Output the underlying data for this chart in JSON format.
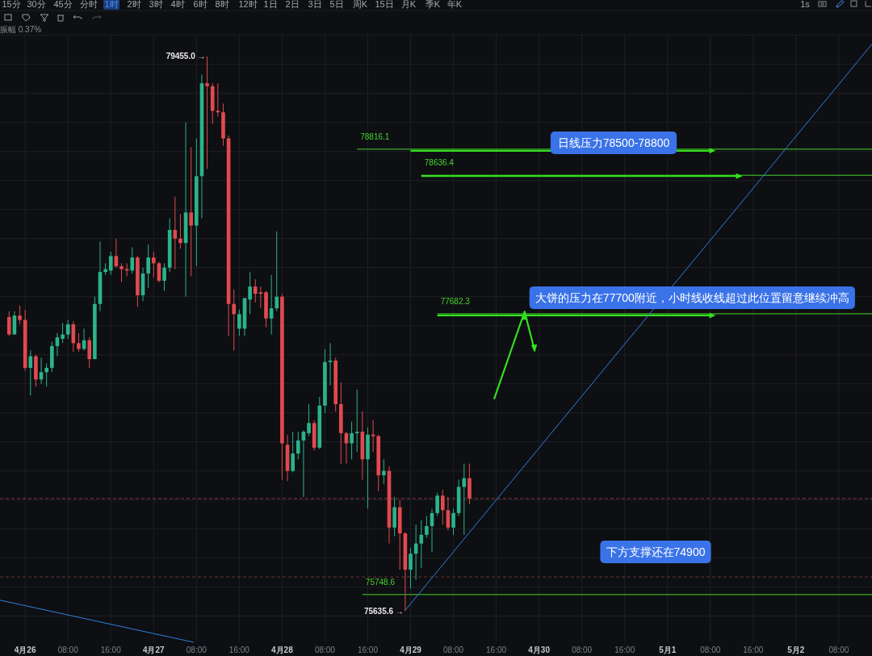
{
  "chart_data": {
    "type": "candlestick",
    "subtitle": "振幅 0.37%",
    "x": [
      "--04-25T21:00",
      "--04-25T22:00",
      "--04-25T23:00",
      "--04-26T00:00",
      "--04-26T01:00",
      "--04-26T02:00",
      "--04-26T03:00",
      "--04-26T04:00",
      "--04-26T05:00",
      "--04-26T06:00",
      "--04-26T07:00",
      "--04-26T08:00",
      "--04-26T09:00",
      "--04-26T10:00",
      "--04-26T11:00",
      "--04-26T12:00",
      "--04-26T13:00",
      "--04-26T14:00",
      "--04-26T15:00",
      "--04-26T16:00",
      "--04-26T17:00",
      "--04-26T18:00",
      "--04-26T19:00",
      "--04-26T20:00",
      "--04-26T21:00",
      "--04-26T22:00",
      "--04-26T23:00",
      "--04-27T00:00",
      "--04-27T01:00",
      "--04-27T02:00",
      "--04-27T03:00",
      "--04-27T04:00",
      "--04-27T05:00",
      "--04-27T06:00",
      "--04-27T07:00",
      "--04-27T08:00",
      "--04-27T09:00",
      "--04-27T10:00",
      "--04-27T11:00",
      "--04-27T12:00",
      "--04-27T13:00",
      "--04-27T14:00",
      "--04-27T15:00",
      "--04-27T16:00",
      "--04-27T17:00",
      "--04-27T18:00",
      "--04-27T19:00",
      "--04-27T20:00",
      "--04-27T21:00",
      "--04-27T22:00",
      "--04-27T23:00",
      "--04-28T00:00",
      "--04-28T01:00",
      "--04-28T02:00",
      "--04-28T03:00",
      "--04-28T04:00",
      "--04-28T05:00",
      "--04-28T06:00",
      "--04-28T07:00",
      "--04-28T08:00",
      "--04-28T09:00",
      "--04-28T10:00",
      "--04-28T11:00",
      "--04-28T12:00",
      "--04-28T13:00",
      "--04-28T14:00",
      "--04-28T15:00",
      "--04-28T16:00",
      "--04-28T17:00",
      "--04-28T18:00",
      "--04-28T19:00",
      "--04-28T20:00",
      "--04-28T21:00",
      "--04-28T22:00",
      "--04-28T23:00",
      "--04-29T00:00",
      "--04-29T01:00",
      "--04-29T02:00",
      "--04-29T03:00",
      "--04-29T04:00",
      "--04-29T05:00",
      "--04-29T06:00",
      "--04-29T07:00",
      "--04-29T08:00",
      "--04-29T09:00",
      "--04-29T10:00",
      "--04-29T11:00"
    ],
    "ohlc": [
      [
        77660,
        77700,
        77530,
        77540
      ],
      [
        77540,
        77700,
        77540,
        77670
      ],
      [
        77670,
        77740,
        77610,
        77640
      ],
      [
        77640,
        77710,
        77290,
        77310
      ],
      [
        77310,
        77430,
        77120,
        77390
      ],
      [
        77390,
        77400,
        77180,
        77230
      ],
      [
        77230,
        77380,
        77200,
        77280
      ],
      [
        77280,
        77340,
        77180,
        77310
      ],
      [
        77310,
        77490,
        77280,
        77460
      ],
      [
        77460,
        77550,
        77390,
        77520
      ],
      [
        77510,
        77620,
        77480,
        77540
      ],
      [
        77540,
        77640,
        77510,
        77610
      ],
      [
        77610,
        77630,
        77420,
        77480
      ],
      [
        77480,
        77550,
        77420,
        77440
      ],
      [
        77440,
        77580,
        77430,
        77500
      ],
      [
        77500,
        77520,
        77310,
        77370
      ],
      [
        77370,
        77800,
        77370,
        77750
      ],
      [
        77750,
        78180,
        77700,
        77970
      ],
      [
        77970,
        78030,
        77950,
        77990
      ],
      [
        77980,
        78110,
        77950,
        78080
      ],
      [
        78080,
        78200,
        78000,
        78010
      ],
      [
        78010,
        78030,
        77900,
        77990
      ],
      [
        77990,
        78030,
        77940,
        77980
      ],
      [
        77980,
        78140,
        77960,
        78070
      ],
      [
        78070,
        78080,
        77730,
        77810
      ],
      [
        77810,
        78000,
        77770,
        77960
      ],
      [
        77960,
        78160,
        77860,
        78070
      ],
      [
        78070,
        78110,
        77930,
        78030
      ],
      [
        78030,
        78040,
        77900,
        77910
      ],
      [
        77910,
        78030,
        77840,
        78000
      ],
      [
        78000,
        78340,
        77970,
        78260
      ],
      [
        78260,
        78490,
        77990,
        78200
      ],
      [
        78200,
        78370,
        78130,
        78170
      ],
      [
        78170,
        79000,
        77800,
        78380
      ],
      [
        78380,
        78830,
        77940,
        78290
      ],
      [
        78290,
        78890,
        78010,
        78630
      ],
      [
        78630,
        79330,
        78340,
        79270
      ],
      [
        79270,
        79455.0,
        78680,
        79250
      ],
      [
        79250,
        79270,
        78990,
        79080
      ],
      [
        79080,
        79270,
        79040,
        79070
      ],
      [
        79070,
        79130,
        78840,
        78890
      ],
      [
        78890,
        78910,
        77530,
        77750
      ],
      [
        77750,
        77850,
        77430,
        77680
      ],
      [
        77580,
        77710,
        77530,
        77680
      ],
      [
        77580,
        77790,
        77530,
        77790
      ],
      [
        77780,
        77970,
        77680,
        77870
      ],
      [
        77870,
        77920,
        77760,
        77820
      ],
      [
        77830,
        77870,
        77720,
        77820
      ],
      [
        77830,
        77840,
        77590,
        77650
      ],
      [
        77650,
        77950,
        77540,
        77720
      ],
      [
        77720,
        78250,
        77700,
        77800
      ],
      [
        77800,
        77820,
        76540,
        76790
      ],
      [
        76780,
        76850,
        76530,
        76600
      ],
      [
        76600,
        76870,
        76590,
        76720
      ],
      [
        76720,
        76870,
        76680,
        76810
      ],
      [
        76810,
        76880,
        76420,
        76870
      ],
      [
        76860,
        77060,
        76840,
        76930
      ],
      [
        76930,
        76950,
        76740,
        76760
      ],
      [
        76760,
        77110,
        76750,
        77050
      ],
      [
        77050,
        77440,
        77000,
        77350
      ],
      [
        77350,
        77480,
        77190,
        77360
      ],
      [
        77360,
        77380,
        77010,
        77060
      ],
      [
        77060,
        77210,
        76650,
        76860
      ],
      [
        76860,
        76870,
        76650,
        76790
      ],
      [
        76790,
        76940,
        76680,
        76860
      ],
      [
        76860,
        77160,
        76730,
        76870
      ],
      [
        76870,
        77010,
        76540,
        76680
      ],
      [
        76680,
        76900,
        76340,
        76850
      ],
      [
        76850,
        76950,
        76730,
        76840
      ],
      [
        76840,
        76850,
        76460,
        76570
      ],
      [
        76570,
        76680,
        76510,
        76600
      ],
      [
        76600,
        76630,
        76100,
        76210
      ],
      [
        76210,
        76420,
        76150,
        76350
      ],
      [
        76350,
        76400,
        75920,
        76170
      ],
      [
        76170,
        76180,
        75635.6,
        75920
      ],
      [
        75920,
        76070,
        75790,
        76030
      ],
      [
        76030,
        76230,
        75850,
        76100
      ],
      [
        76100,
        76260,
        75930,
        76160
      ],
      [
        76160,
        76290,
        76140,
        76220
      ],
      [
        76220,
        76340,
        76040,
        76310
      ],
      [
        76310,
        76450,
        76290,
        76430
      ],
      [
        76430,
        76470,
        76230,
        76330
      ],
      [
        76330,
        76420,
        76190,
        76210
      ],
      [
        76210,
        76340,
        76160,
        76310
      ],
      [
        76310,
        76540,
        76290,
        76490
      ],
      [
        76490,
        76650,
        76160,
        76550
      ],
      [
        76550,
        76650,
        76370,
        76410
      ]
    ],
    "series": [
      {
        "type": "line",
        "color": "#2f7fe0",
        "x": [
          "--04-28T23:00",
          "--05-02T14:12"
        ],
        "values": [
          75640,
          79540
        ]
      },
      {
        "type": "line",
        "color": "#2f7fe0",
        "x": [
          "--04-25T19:18",
          "--04-27T07:30"
        ],
        "values": [
          75710,
          75420
        ]
      }
    ],
    "xlim": [
      "--04-25T19:18",
      "--05-02T14:12"
    ],
    "ylim": [
      75420,
      79610
    ],
    "xticks": [
      {
        "value": "--04-26T00:00",
        "label": "4月26"
      },
      {
        "value": "--04-26T08:00",
        "label": "08:00"
      },
      {
        "value": "--04-26T16:00",
        "label": "16:00"
      },
      {
        "value": "--04-27T00:00",
        "label": "4月27"
      },
      {
        "value": "--04-27T08:00",
        "label": "08:00"
      },
      {
        "value": "--04-27T16:00",
        "label": "16:00"
      },
      {
        "value": "--04-28T00:00",
        "label": "4月28"
      },
      {
        "value": "--04-28T08:00",
        "label": "08:00"
      },
      {
        "value": "--04-28T16:00",
        "label": "16:00"
      },
      {
        "value": "--04-29T00:00",
        "label": "4月29"
      },
      {
        "value": "--04-29T08:00",
        "label": "08:00"
      },
      {
        "value": "--04-29T16:00",
        "label": "16:00"
      },
      {
        "value": "--04-30T00:00",
        "label": "4月30"
      },
      {
        "value": "--04-30T08:00",
        "label": "08:00"
      },
      {
        "value": "--04-30T16:00",
        "label": "16:00"
      },
      {
        "value": "--05-01T00:00",
        "label": "5月1"
      },
      {
        "value": "--05-01T08:00",
        "label": "08:00"
      },
      {
        "value": "--05-01T16:00",
        "label": "16:00"
      },
      {
        "value": "--05-02T00:00",
        "label": "5月2"
      },
      {
        "value": "--05-02T08:00",
        "label": "08:00"
      }
    ],
    "yticks": [
      {
        "value": 75600,
        "label": null
      },
      {
        "value": 75800,
        "label": null
      },
      {
        "value": 76000,
        "label": null
      },
      {
        "value": 76200,
        "label": null
      },
      {
        "value": 76400,
        "label": null
      },
      {
        "value": 76600,
        "label": null
      },
      {
        "value": 76800,
        "label": null
      },
      {
        "value": 77000,
        "label": null
      },
      {
        "value": 77200,
        "label": null
      },
      {
        "value": 77400,
        "label": null
      },
      {
        "value": 77600,
        "label": null
      },
      {
        "value": 77800,
        "label": null
      },
      {
        "value": 78000,
        "label": null
      },
      {
        "value": 78200,
        "label": null
      },
      {
        "value": 78400,
        "label": null
      },
      {
        "value": 78600,
        "label": null
      },
      {
        "value": 78800,
        "label": null
      },
      {
        "value": 79000,
        "label": null
      },
      {
        "value": 79200,
        "label": null
      },
      {
        "value": 79400,
        "label": null
      },
      {
        "value": 79600,
        "label": null
      }
    ],
    "tick_labels": "x",
    "grid": true,
    "ref_lines": [
      {
        "axis": "y",
        "value": 78816.1,
        "label": "78816.1",
        "color": "#45d42c"
      },
      {
        "axis": "y",
        "value": 78636.4,
        "label": "78636.4",
        "color": "#45d42c"
      },
      {
        "axis": "y",
        "value": 77682.3,
        "label": "77682.3",
        "color": "#45d42c"
      },
      {
        "axis": "y",
        "value": 75748.6,
        "label": "75748.6",
        "color": "#45d42c"
      },
      {
        "axis": "y",
        "value": 76410,
        "label": null,
        "color": "#8a3b3b",
        "line_style": "dashed"
      },
      {
        "axis": "y",
        "value": 75870,
        "label": null,
        "color": "#6a3535",
        "line_style": "dashed"
      }
    ],
    "annotations": [
      "日线压力78500-78800",
      {
        "text": "大饼的压力在77700附近，小时线收线超过此位置留意继续冲高",
        "x": "--04-29T21:18",
        "y": 77682.3
      },
      "下方支撑还在74900",
      {
        "text": "79455.0 →",
        "x": "--04-27T10:00",
        "y": 79455.0
      },
      {
        "text": "75635.6 →",
        "x": "--04-28T23:00",
        "y": 75635.6
      },
      "15分",
      "30分",
      "45分",
      "分时",
      "1时",
      "2时",
      "3时",
      "4时",
      "6时",
      "8时",
      "12时",
      "1日",
      "2日",
      "3日",
      "5日",
      "周K",
      "15日",
      "月K",
      "季K",
      "年K",
      "1s"
    ]
  }
}
